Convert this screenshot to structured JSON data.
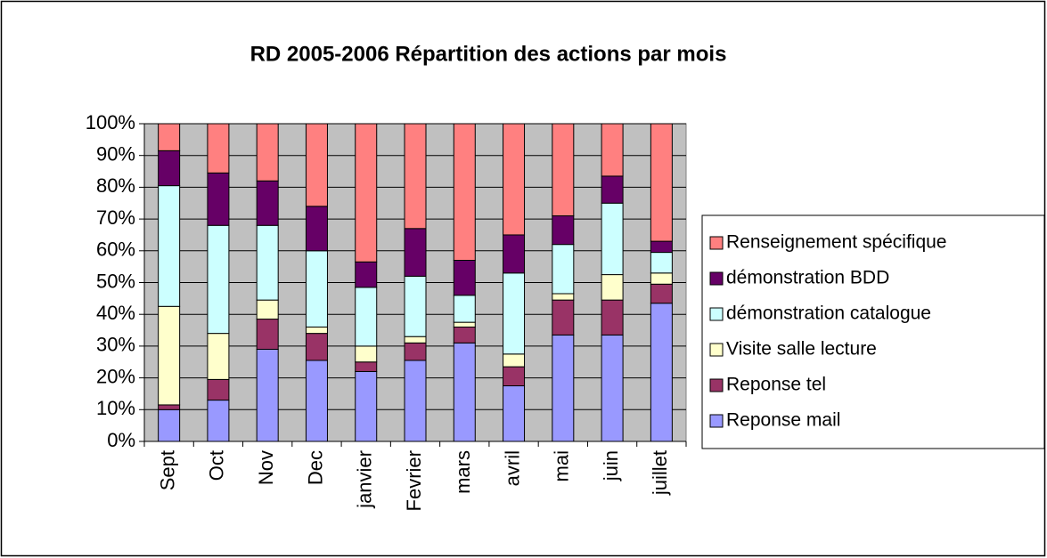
{
  "chart_data": {
    "type": "stacked_bar_percent",
    "title": "RD 2005-2006 Répartition des actions par mois",
    "categories": [
      "Sept",
      "Oct",
      "Nov",
      "Dec",
      "janvier",
      "Fevrier",
      "mars",
      "avril",
      "mai",
      "juin",
      "juillet"
    ],
    "series": [
      {
        "name": "Reponse mail",
        "color": "#9999ff",
        "values": [
          10,
          13,
          29,
          25.5,
          22,
          25.5,
          31,
          17.5,
          33.5,
          33.5,
          43.5
        ]
      },
      {
        "name": "Reponse tel",
        "color": "#993366",
        "values": [
          1.5,
          6.5,
          9.5,
          8.5,
          3,
          5.5,
          5,
          6,
          11,
          11,
          6
        ]
      },
      {
        "name": "Visite salle lecture",
        "color": "#ffffcc",
        "values": [
          31,
          14.5,
          6,
          2,
          5,
          2,
          1.5,
          4,
          2,
          8,
          3.5
        ]
      },
      {
        "name": "démonstration catalogue",
        "color": "#ccffff",
        "values": [
          38,
          34,
          23.5,
          24,
          18.5,
          19,
          8.5,
          25.5,
          15.5,
          22.5,
          6.5
        ]
      },
      {
        "name": "démonstration BDD",
        "color": "#660066",
        "values": [
          11,
          16.5,
          14,
          14,
          8,
          15,
          11,
          12,
          9,
          8.5,
          3.5
        ]
      },
      {
        "name": "Renseignement spécifique",
        "color": "#ff8080",
        "values": [
          8.5,
          15.5,
          18,
          26,
          43.5,
          33,
          43,
          35,
          29,
          16.5,
          37
        ]
      }
    ],
    "ylim": [
      0,
      100
    ],
    "yticks": [
      {
        "value": 0,
        "label": "0%"
      },
      {
        "value": 10,
        "label": "10%"
      },
      {
        "value": 20,
        "label": "20%"
      },
      {
        "value": 30,
        "label": "30%"
      },
      {
        "value": 40,
        "label": "40%"
      },
      {
        "value": 50,
        "label": "50%"
      },
      {
        "value": 60,
        "label": "60%"
      },
      {
        "value": 70,
        "label": "70%"
      },
      {
        "value": 80,
        "label": "80%"
      },
      {
        "value": 90,
        "label": "90%"
      },
      {
        "value": 100,
        "label": "100%"
      }
    ],
    "grid": true,
    "plot_background": "#c0c0c0",
    "legend": "right"
  }
}
